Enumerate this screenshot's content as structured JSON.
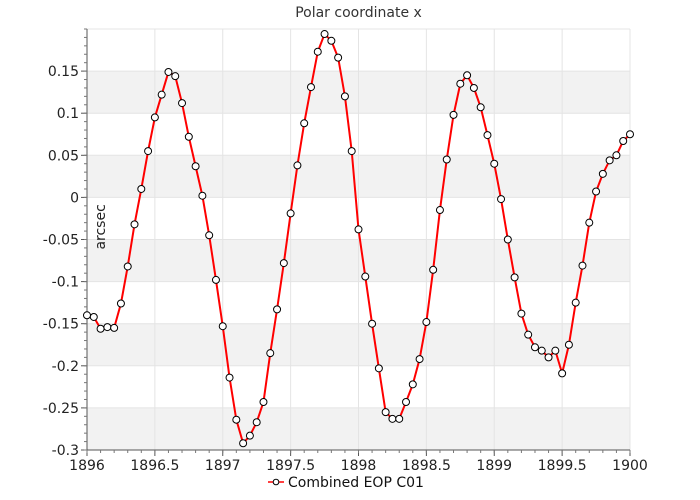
{
  "chart_data": {
    "type": "line",
    "title": "Polar coordinate x",
    "xlabel": "",
    "ylabel": "arcsec",
    "xlim": [
      1896,
      1900
    ],
    "ylim": [
      -0.3,
      0.2
    ],
    "x_ticks": [
      1896,
      1896.5,
      1897,
      1897.5,
      1898,
      1898.5,
      1899,
      1899.5,
      1900
    ],
    "y_ticks": [
      -0.3,
      -0.25,
      -0.2,
      -0.15,
      -0.1,
      -0.05,
      0,
      0.05,
      0.1,
      0.15
    ],
    "x_tick_labels": [
      "1896",
      "1896.5",
      "1897",
      "1897.5",
      "1898",
      "1898.5",
      "1899",
      "1899.5",
      "1900"
    ],
    "y_tick_labels": [
      "-0.3",
      "-0.25",
      "-0.2",
      "-0.15",
      "-0.1",
      "-0.05",
      "0",
      "0.05",
      "0.1",
      "0.15"
    ],
    "grid": true,
    "banded_background": true,
    "legend_position": "bottom-center",
    "series": [
      {
        "name": "Combined EOP C01",
        "color": "#ff0000",
        "marker": "open-circle",
        "x": [
          1896.0,
          1896.05,
          1896.1,
          1896.15,
          1896.2,
          1896.25,
          1896.3,
          1896.35,
          1896.4,
          1896.45,
          1896.5,
          1896.55,
          1896.6,
          1896.65,
          1896.7,
          1896.75,
          1896.8,
          1896.85,
          1896.9,
          1896.95,
          1897.0,
          1897.05,
          1897.1,
          1897.15,
          1897.2,
          1897.25,
          1897.3,
          1897.35,
          1897.4,
          1897.45,
          1897.5,
          1897.55,
          1897.6,
          1897.65,
          1897.7,
          1897.75,
          1897.8,
          1897.85,
          1897.9,
          1897.95,
          1898.0,
          1898.05,
          1898.1,
          1898.15,
          1898.2,
          1898.25,
          1898.3,
          1898.35,
          1898.4,
          1898.45,
          1898.5,
          1898.55,
          1898.6,
          1898.65,
          1898.7,
          1898.75,
          1898.8,
          1898.85,
          1898.9,
          1898.95,
          1899.0,
          1899.05,
          1899.1,
          1899.15,
          1899.2,
          1899.25,
          1899.3,
          1899.35,
          1899.4,
          1899.45,
          1899.5,
          1899.55,
          1899.6,
          1899.65,
          1899.7,
          1899.75,
          1899.8,
          1899.85,
          1899.9,
          1899.95,
          1900.0
        ],
        "y": [
          -0.14,
          -0.142,
          -0.156,
          -0.154,
          -0.155,
          -0.126,
          -0.082,
          -0.032,
          0.01,
          0.055,
          0.095,
          0.122,
          0.149,
          0.144,
          0.112,
          0.072,
          0.037,
          0.002,
          -0.045,
          -0.098,
          -0.153,
          -0.214,
          -0.264,
          -0.292,
          -0.283,
          -0.267,
          -0.243,
          -0.185,
          -0.133,
          -0.078,
          -0.019,
          0.038,
          0.088,
          0.131,
          0.173,
          0.194,
          0.186,
          0.166,
          0.12,
          0.055,
          -0.038,
          -0.094,
          -0.15,
          -0.203,
          -0.255,
          -0.263,
          -0.263,
          -0.243,
          -0.222,
          -0.192,
          -0.148,
          -0.086,
          -0.015,
          0.045,
          0.098,
          0.135,
          0.145,
          0.13,
          0.107,
          0.074,
          0.04,
          -0.002,
          -0.05,
          -0.095,
          -0.138,
          -0.163,
          -0.178,
          -0.182,
          -0.19,
          -0.182,
          -0.209,
          -0.175,
          -0.125,
          -0.081,
          -0.03,
          0.007,
          0.028,
          0.044,
          0.05,
          0.067,
          0.075
        ]
      }
    ]
  }
}
